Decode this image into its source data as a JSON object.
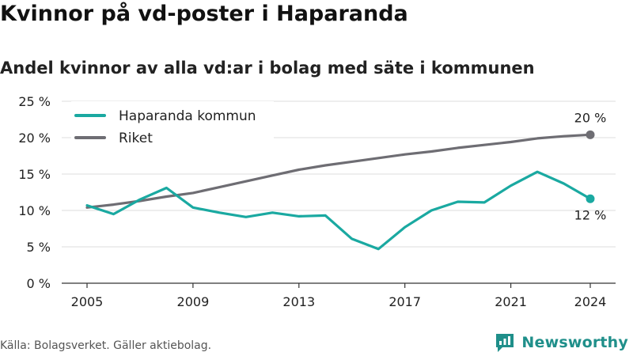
{
  "title": "Kvinnor på vd-poster i Haparanda",
  "subtitle": "Andel kvinnor av alla vd:ar i bolag med säte i kommunen",
  "source": "Källa: Bolagsverket. Gäller aktiebolag.",
  "brand": {
    "name": "Newsworthy",
    "icon": "newsworthy-logo-icon"
  },
  "colors": {
    "haparanda": "#1aa9a1",
    "riket": "#6e6d73",
    "grid": "#dcdcdc",
    "axis": "#333333"
  },
  "chart_data": {
    "type": "line",
    "title": "",
    "xlabel": "",
    "ylabel": "",
    "x": [
      2005,
      2006,
      2007,
      2008,
      2009,
      2010,
      2011,
      2012,
      2013,
      2014,
      2015,
      2016,
      2017,
      2018,
      2019,
      2020,
      2021,
      2022,
      2023,
      2024
    ],
    "xlim": [
      2005,
      2024
    ],
    "x_ticks": [
      2005,
      2009,
      2013,
      2017,
      2021,
      2024
    ],
    "x_tick_labels": [
      "2005",
      "2009",
      "2013",
      "2017",
      "2021",
      "2024"
    ],
    "ylim": [
      0,
      25
    ],
    "y_ticks": [
      0,
      5,
      10,
      15,
      20,
      25
    ],
    "y_tick_labels": [
      "0 %",
      "5 %",
      "10 %",
      "15 %",
      "20 %",
      "25 %"
    ],
    "grid": true,
    "legend": "top-left",
    "series": [
      {
        "name": "Haparanda kommun",
        "color": "#1aa9a1",
        "values": [
          10.7,
          9.5,
          11.5,
          13.1,
          10.4,
          9.7,
          9.1,
          9.7,
          9.2,
          9.3,
          6.1,
          4.7,
          7.7,
          10.0,
          11.2,
          11.1,
          13.4,
          15.3,
          13.7,
          11.6
        ],
        "end_label": "12 %"
      },
      {
        "name": "Riket",
        "color": "#6e6d73",
        "values": [
          10.4,
          10.8,
          11.3,
          11.9,
          12.4,
          13.2,
          14.0,
          14.8,
          15.6,
          16.2,
          16.7,
          17.2,
          17.7,
          18.1,
          18.6,
          19.0,
          19.4,
          19.9,
          20.2,
          20.4
        ],
        "end_label": "20 %"
      }
    ]
  }
}
